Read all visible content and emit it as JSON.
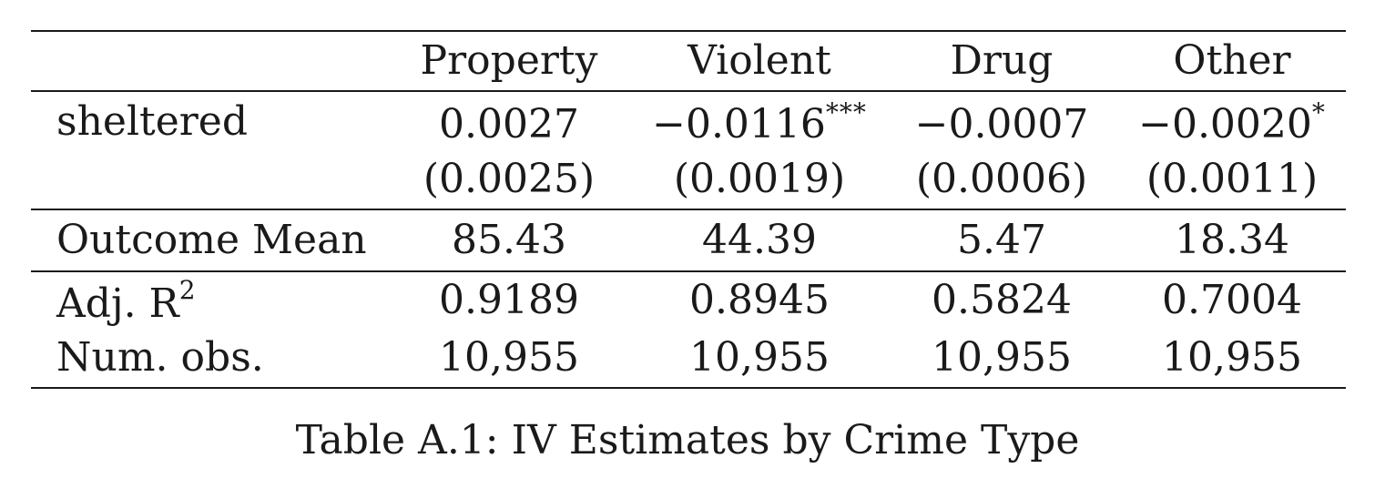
{
  "table": {
    "columns": [
      "Property",
      "Violent",
      "Drug",
      "Other"
    ],
    "rows": {
      "sheltered": {
        "label": "sheltered",
        "coef": [
          {
            "value": "0.0027",
            "stars": ""
          },
          {
            "value": "−0.0116",
            "stars": "***"
          },
          {
            "value": "−0.0007",
            "stars": ""
          },
          {
            "value": "−0.0020",
            "stars": "*"
          }
        ],
        "se": [
          "(0.0025)",
          "(0.0019)",
          "(0.0006)",
          "(0.0011)"
        ]
      },
      "outcome_mean": {
        "label": "Outcome Mean",
        "values": [
          "85.43",
          "44.39",
          "5.47",
          "18.34"
        ]
      },
      "adj_r2": {
        "label": "Adj. R",
        "label_sup": "2",
        "values": [
          "0.9189",
          "0.8945",
          "0.5824",
          "0.7004"
        ]
      },
      "num_obs": {
        "label": "Num. obs.",
        "values": [
          "10,955",
          "10,955",
          "10,955",
          "10,955"
        ]
      }
    }
  },
  "caption": "Table A.1: IV Estimates by Crime Type"
}
